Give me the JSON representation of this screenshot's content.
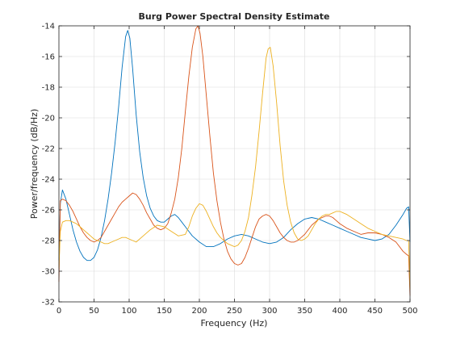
{
  "chart_data": {
    "type": "line",
    "title": "Burg Power Spectral Density Estimate",
    "xlabel": "Frequency (Hz)",
    "ylabel": "Power/frequency (dB/Hz)",
    "xlim": [
      0,
      500
    ],
    "ylim": [
      -32,
      -14
    ],
    "xticks": [
      0,
      50,
      100,
      150,
      200,
      250,
      300,
      350,
      400,
      450,
      500
    ],
    "yticks": [
      -32,
      -30,
      -28,
      -26,
      -24,
      -22,
      -20,
      -18,
      -16,
      -14
    ],
    "grid": true,
    "legend": "none",
    "series": [
      {
        "color": "#0072BD",
        "x": [
          0,
          2,
          5,
          10,
          15,
          20,
          25,
          30,
          35,
          40,
          45,
          50,
          55,
          60,
          65,
          70,
          75,
          80,
          85,
          90,
          95,
          98,
          101,
          105,
          110,
          115,
          120,
          125,
          130,
          135,
          140,
          145,
          150,
          155,
          160,
          165,
          170,
          175,
          180,
          185,
          190,
          200,
          210,
          220,
          230,
          240,
          250,
          260,
          270,
          280,
          290,
          300,
          310,
          320,
          330,
          340,
          350,
          360,
          370,
          380,
          390,
          400,
          410,
          420,
          430,
          440,
          450,
          460,
          470,
          480,
          490,
          495,
          498,
          500
        ],
        "y": [
          -29.3,
          -25.6,
          -24.7,
          -25.3,
          -26.3,
          -27.3,
          -28.1,
          -28.7,
          -29.1,
          -29.3,
          -29.3,
          -29.1,
          -28.6,
          -27.8,
          -26.7,
          -25.3,
          -23.6,
          -21.6,
          -19.3,
          -16.7,
          -14.7,
          -14.3,
          -14.8,
          -16.8,
          -19.8,
          -22.2,
          -23.9,
          -25.1,
          -25.9,
          -26.4,
          -26.7,
          -26.8,
          -26.8,
          -26.6,
          -26.4,
          -26.3,
          -26.5,
          -26.8,
          -27.1,
          -27.4,
          -27.7,
          -28.1,
          -28.4,
          -28.4,
          -28.2,
          -27.9,
          -27.7,
          -27.6,
          -27.7,
          -27.9,
          -28.1,
          -28.2,
          -28.1,
          -27.8,
          -27.3,
          -26.9,
          -26.6,
          -26.5,
          -26.6,
          -26.8,
          -27.0,
          -27.2,
          -27.4,
          -27.6,
          -27.8,
          -27.9,
          -28.0,
          -27.9,
          -27.6,
          -27.0,
          -26.3,
          -25.9,
          -25.8,
          -28.1
        ]
      },
      {
        "color": "#D95319",
        "x": [
          0,
          2,
          5,
          10,
          15,
          20,
          25,
          30,
          35,
          40,
          45,
          50,
          55,
          60,
          65,
          70,
          75,
          80,
          85,
          90,
          95,
          100,
          105,
          110,
          115,
          120,
          125,
          130,
          135,
          140,
          145,
          150,
          155,
          160,
          165,
          170,
          175,
          180,
          185,
          190,
          195,
          198,
          201,
          205,
          210,
          215,
          220,
          225,
          230,
          235,
          240,
          245,
          250,
          255,
          260,
          265,
          270,
          275,
          280,
          285,
          290,
          295,
          300,
          305,
          310,
          315,
          320,
          325,
          330,
          335,
          340,
          345,
          350,
          355,
          360,
          365,
          370,
          375,
          380,
          385,
          390,
          395,
          400,
          410,
          420,
          430,
          440,
          450,
          460,
          470,
          480,
          490,
          495,
          498,
          500
        ],
        "y": [
          -30.7,
          -25.4,
          -25.3,
          -25.4,
          -25.7,
          -26.1,
          -26.6,
          -27.1,
          -27.5,
          -27.8,
          -28.0,
          -28.1,
          -28.0,
          -27.8,
          -27.4,
          -27.0,
          -26.6,
          -26.2,
          -25.8,
          -25.5,
          -25.3,
          -25.1,
          -24.9,
          -25.0,
          -25.3,
          -25.7,
          -26.2,
          -26.6,
          -27.0,
          -27.2,
          -27.3,
          -27.2,
          -26.9,
          -26.2,
          -25.3,
          -23.9,
          -22.0,
          -19.6,
          -17.3,
          -15.4,
          -14.2,
          -14.0,
          -14.5,
          -16.0,
          -18.6,
          -21.2,
          -23.6,
          -25.4,
          -26.8,
          -27.9,
          -28.7,
          -29.2,
          -29.5,
          -29.6,
          -29.5,
          -29.1,
          -28.5,
          -27.8,
          -27.1,
          -26.6,
          -26.4,
          -26.3,
          -26.4,
          -26.7,
          -27.1,
          -27.5,
          -27.8,
          -28.0,
          -28.1,
          -28.1,
          -28.0,
          -27.8,
          -27.6,
          -27.3,
          -27.0,
          -26.8,
          -26.6,
          -26.5,
          -26.4,
          -26.4,
          -26.5,
          -26.7,
          -26.9,
          -27.2,
          -27.4,
          -27.6,
          -27.5,
          -27.5,
          -27.6,
          -27.8,
          -28.1,
          -28.7,
          -28.9,
          -29.0,
          -31.6
        ]
      },
      {
        "color": "#EDB120",
        "x": [
          0,
          2,
          5,
          10,
          15,
          20,
          25,
          30,
          35,
          40,
          45,
          50,
          55,
          60,
          65,
          70,
          75,
          80,
          85,
          90,
          95,
          100,
          110,
          120,
          130,
          140,
          150,
          160,
          170,
          180,
          185,
          190,
          195,
          200,
          205,
          210,
          215,
          220,
          225,
          230,
          235,
          240,
          245,
          250,
          255,
          260,
          265,
          270,
          275,
          280,
          285,
          290,
          295,
          298,
          301,
          305,
          310,
          315,
          320,
          325,
          330,
          335,
          340,
          345,
          350,
          355,
          360,
          365,
          370,
          375,
          380,
          385,
          390,
          395,
          400,
          405,
          410,
          420,
          430,
          440,
          450,
          460,
          470,
          480,
          490,
          495,
          498,
          500
        ],
        "y": [
          -29.8,
          -27.4,
          -26.8,
          -26.7,
          -26.7,
          -26.8,
          -26.9,
          -27.1,
          -27.3,
          -27.5,
          -27.7,
          -27.9,
          -28.0,
          -28.1,
          -28.2,
          -28.2,
          -28.1,
          -28.0,
          -27.9,
          -27.8,
          -27.8,
          -27.9,
          -28.1,
          -27.7,
          -27.3,
          -27.0,
          -27.1,
          -27.4,
          -27.7,
          -27.6,
          -27.1,
          -26.4,
          -25.9,
          -25.6,
          -25.7,
          -26.1,
          -26.6,
          -27.1,
          -27.5,
          -27.8,
          -28.0,
          -28.2,
          -28.3,
          -28.4,
          -28.3,
          -28.0,
          -27.4,
          -26.5,
          -25.0,
          -23.2,
          -20.9,
          -18.4,
          -16.1,
          -15.5,
          -15.4,
          -16.6,
          -19.0,
          -21.8,
          -24.1,
          -25.7,
          -26.8,
          -27.5,
          -27.9,
          -28.0,
          -27.9,
          -27.7,
          -27.3,
          -26.9,
          -26.6,
          -26.4,
          -26.3,
          -26.3,
          -26.2,
          -26.1,
          -26.1,
          -26.2,
          -26.3,
          -26.6,
          -26.9,
          -27.2,
          -27.4,
          -27.6,
          -27.7,
          -27.8,
          -27.9,
          -28.0,
          -28.0,
          -31.2
        ]
      }
    ]
  }
}
